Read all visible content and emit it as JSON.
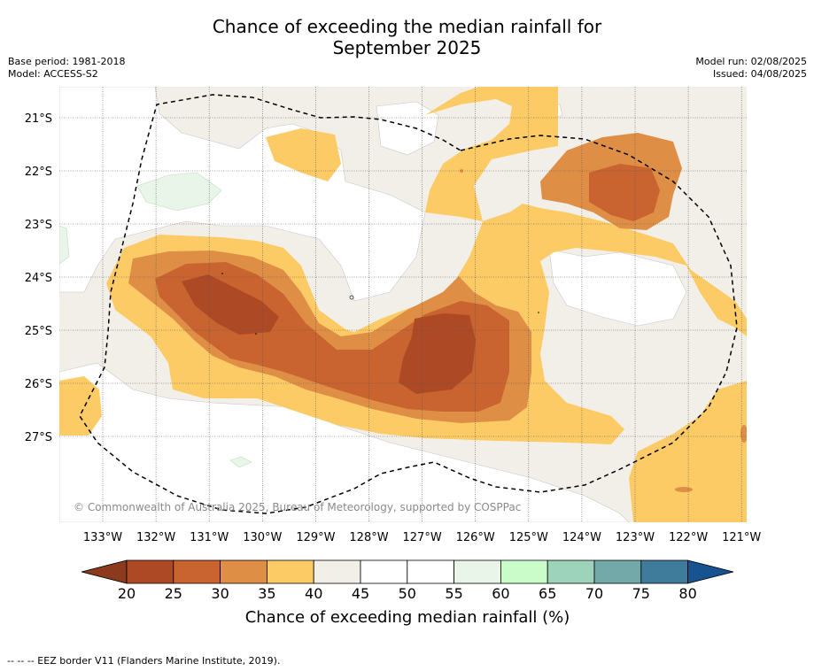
{
  "title_line1": "Chance of exceeding the median rainfall for",
  "title_line2": "September 2025",
  "base_period": "Base period: 1981-2018",
  "model": "Model: ACCESS-S2",
  "model_run": "Model run: 02/08/2025",
  "issued": "Issued: 04/08/2025",
  "copyright": "© Commonwealth of Australia 2025, Bureau of Meteorology, supported by COSPPac",
  "footnote": "--  --  -- EEZ border V11 (Flanders Marine Institute, 2019).",
  "lat_labels": [
    "21°S",
    "22°S",
    "23°S",
    "24°S",
    "25°S",
    "26°S",
    "27°S"
  ],
  "lon_labels": [
    "133°W",
    "132°W",
    "131°W",
    "130°W",
    "129°W",
    "128°W",
    "127°W",
    "126°W",
    "125°W",
    "124°W",
    "123°W",
    "122°W",
    "121°W"
  ],
  "colorbar": {
    "title": "Chance of exceeding median rainfall (%)",
    "ticks": [
      "20",
      "25",
      "30",
      "35",
      "40",
      "45",
      "50",
      "55",
      "60",
      "65",
      "70",
      "75",
      "80"
    ],
    "colors": [
      "#ad4a25",
      "#c9632f",
      "#df8f45",
      "#fdcb65",
      "#f2efe9",
      "#ffffff",
      "#ffffff",
      "#eaf5ea",
      "#cafcca",
      "#9dd2bb",
      "#73a9a8",
      "#3f7c9c"
    ],
    "under_color": "#8c3a1e",
    "over_color": "#175391"
  }
}
